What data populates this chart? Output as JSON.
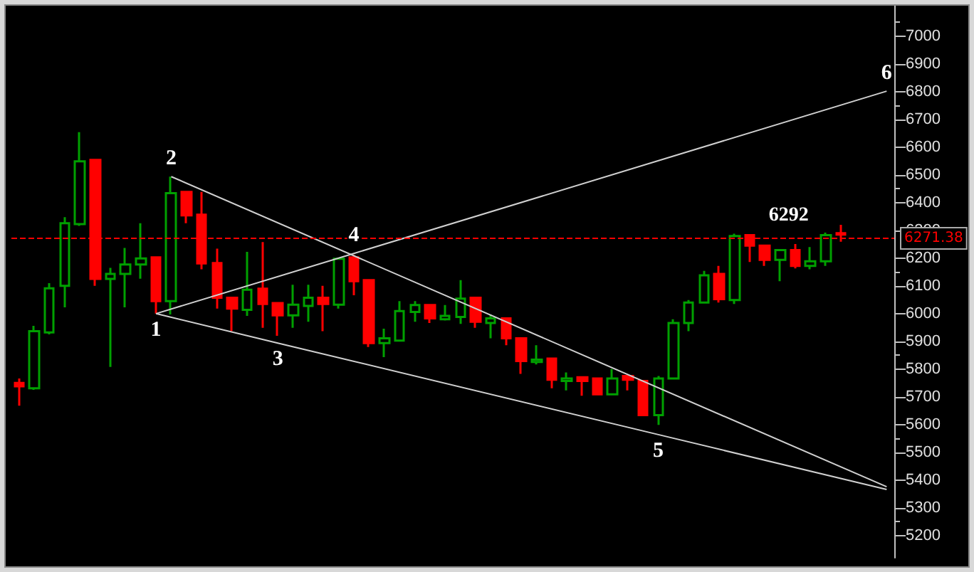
{
  "chart_data": {
    "type": "candlestick",
    "categories": [
      null,
      null,
      null,
      null,
      null,
      null,
      null,
      null,
      null,
      null,
      null,
      null,
      null,
      null,
      null,
      null,
      null,
      null,
      null,
      null,
      null,
      null,
      null,
      null,
      null,
      null,
      null,
      null,
      null,
      null,
      null,
      null,
      null,
      null,
      null,
      null,
      null,
      null,
      null,
      null,
      null,
      null,
      null,
      null,
      null,
      null,
      null,
      null,
      null,
      null,
      null,
      null,
      null,
      null,
      null,
      null,
      null,
      null
    ],
    "series": [
      {
        "colors": [
          "#ff0000",
          "#00a000",
          "#00a000",
          "#00a000",
          "#00a000",
          "#ff0000",
          "#00a000",
          "#00a000",
          "#00a000",
          "#ff0000",
          "#00a000",
          "#ff0000",
          "#ff0000",
          "#ff0000",
          "#ff0000",
          "#00a000",
          "#ff0000",
          "#ff0000",
          "#00a000",
          "#00a000",
          "#ff0000",
          "#00a000",
          "#ff0000",
          "#ff0000",
          "#00a000",
          "#00a000",
          "#00a000",
          "#ff0000",
          "#00a000",
          "#00a000",
          "#ff0000",
          "#00a000",
          "#ff0000",
          "#ff0000",
          "#00a000",
          "#ff0000",
          "#00a000",
          "#ff0000",
          "#ff0000",
          "#00a000",
          "#ff0000",
          "#ff0000",
          "#00a000",
          "#00a000",
          "#00a000",
          "#00a000",
          "#ff0000",
          "#00a000",
          "#ff0000",
          "#ff0000",
          "#00a000",
          "#ff0000",
          "#00a000",
          "#00a000",
          "#ff0000",
          null,
          null,
          null
        ],
        "ohlc": [
          [
            5750,
            5766,
            5668,
            5738
          ],
          [
            5731,
            5956,
            5725,
            5937
          ],
          [
            5932,
            6110,
            5925,
            6091
          ],
          [
            6100,
            6348,
            6023,
            6326
          ],
          [
            6323,
            6654,
            6316,
            6549
          ],
          [
            6554,
            6554,
            6100,
            6125
          ],
          [
            6125,
            6165,
            5808,
            6143
          ],
          [
            6143,
            6237,
            6023,
            6177
          ],
          [
            6177,
            6326,
            6126,
            6199
          ],
          [
            6203,
            6203,
            6000,
            6045
          ],
          [
            6045,
            6494,
            5997,
            6434
          ],
          [
            6439,
            6439,
            6326,
            6354
          ],
          [
            6357,
            6439,
            6160,
            6181
          ],
          [
            6182,
            6234,
            6018,
            6057
          ],
          [
            6057,
            6057,
            5937,
            6018
          ],
          [
            6014,
            6223,
            5992,
            6086
          ],
          [
            6090,
            6258,
            5949,
            6035
          ],
          [
            6038,
            6038,
            5920,
            5994
          ],
          [
            5994,
            6104,
            5949,
            6032
          ],
          [
            6028,
            6104,
            5971,
            6057
          ],
          [
            6057,
            6100,
            5937,
            6035
          ],
          [
            6032,
            6198,
            6018,
            6198
          ],
          [
            6203,
            6212,
            6066,
            6117
          ],
          [
            6121,
            6121,
            5880,
            5894
          ],
          [
            5894,
            5946,
            5843,
            5911
          ],
          [
            5903,
            6045,
            5903,
            6009
          ],
          [
            6006,
            6045,
            5971,
            6031
          ],
          [
            6031,
            6031,
            5966,
            5983
          ],
          [
            5980,
            6031,
            5975,
            5992
          ],
          [
            5988,
            6121,
            5963,
            6054
          ],
          [
            6057,
            6057,
            5949,
            5971
          ],
          [
            5966,
            5997,
            5911,
            5983
          ],
          [
            5983,
            5983,
            5886,
            5911
          ],
          [
            5911,
            5911,
            5783,
            5829
          ],
          [
            5826,
            5886,
            5817,
            5834
          ],
          [
            5838,
            5838,
            5731,
            5762
          ],
          [
            5757,
            5788,
            5723,
            5766
          ],
          [
            5771,
            5771,
            5704,
            5757
          ],
          [
            5766,
            5766,
            5709,
            5709
          ],
          [
            5709,
            5800,
            5709,
            5766
          ],
          [
            5775,
            5775,
            5723,
            5762
          ],
          [
            5757,
            5757,
            5634,
            5634
          ],
          [
            5634,
            5775,
            5599,
            5766
          ],
          [
            5766,
            5980,
            5766,
            5966
          ],
          [
            5966,
            6049,
            5937,
            6040
          ],
          [
            6040,
            6154,
            6040,
            6138
          ],
          [
            6143,
            6172,
            6040,
            6052
          ],
          [
            6049,
            6288,
            6035,
            6280
          ],
          [
            6283,
            6283,
            6186,
            6245
          ],
          [
            6245,
            6245,
            6172,
            6194
          ],
          [
            6194,
            6229,
            6117,
            6229
          ],
          [
            6229,
            6251,
            6163,
            6172
          ],
          [
            6172,
            6240,
            6160,
            6189
          ],
          [
            6189,
            6292,
            6172,
            6283
          ],
          [
            6290,
            6320,
            6259,
            6285
          ],
          null,
          null,
          null
        ]
      },
      {
        "type": "line",
        "color": "#d0d0d0",
        "values": [
          null,
          null,
          null,
          null,
          null,
          null,
          null,
          null,
          null,
          6000,
          null,
          null,
          null,
          null,
          null,
          null,
          null,
          null,
          null,
          null,
          null,
          null,
          6217,
          null,
          null,
          null,
          null,
          null,
          null,
          null,
          null,
          null,
          null,
          null,
          null,
          null,
          null,
          null,
          null,
          null,
          null,
          null,
          null,
          null,
          null,
          null,
          null,
          null,
          null,
          null,
          null,
          null,
          null,
          null,
          null,
          null,
          null,
          6802
        ]
      },
      {
        "type": "line",
        "color": "#d0d0d0",
        "values": [
          null,
          null,
          null,
          null,
          null,
          null,
          null,
          null,
          null,
          null,
          6494,
          null,
          null,
          null,
          null,
          null,
          null,
          null,
          null,
          null,
          null,
          null,
          null,
          null,
          null,
          null,
          null,
          null,
          null,
          null,
          null,
          null,
          null,
          null,
          null,
          null,
          null,
          null,
          null,
          null,
          null,
          null,
          null,
          null,
          null,
          null,
          null,
          null,
          null,
          null,
          null,
          null,
          null,
          null,
          null,
          null,
          null,
          5376
        ]
      },
      {
        "type": "line",
        "color": "#d0d0d0",
        "values": [
          null,
          null,
          null,
          null,
          null,
          null,
          null,
          null,
          null,
          6000,
          null,
          null,
          null,
          null,
          null,
          null,
          null,
          5894,
          null,
          null,
          null,
          null,
          null,
          null,
          null,
          null,
          null,
          null,
          null,
          null,
          null,
          null,
          null,
          null,
          null,
          null,
          null,
          null,
          null,
          null,
          null,
          null,
          5564,
          null,
          null,
          null,
          null,
          null,
          null,
          null,
          null,
          null,
          null,
          null,
          null,
          null,
          null,
          5366
        ]
      }
    ],
    "ylim": [
      5120,
      7110
    ],
    "yticks": [
      5200,
      5300,
      5400,
      5500,
      5600,
      5700,
      5800,
      5900,
      6000,
      6100,
      6200,
      6300,
      6400,
      6500,
      6600,
      6700,
      6800,
      6900,
      7000
    ],
    "ref_lines": [
      {
        "axis": "y",
        "value": 6271.38,
        "label": "6271.38",
        "color": "#ff0000",
        "line_style": "dashed"
      }
    ],
    "annotations": [
      {
        "text": "1",
        "y": 6000
      },
      {
        "text": "2",
        "y": 6494
      },
      {
        "text": "3",
        "y": 5894
      },
      {
        "text": "4",
        "y": 6217
      },
      {
        "text": "5",
        "y": 5564
      },
      {
        "text": "6",
        "y": 6802
      },
      {
        "text": "6292",
        "y": 6292
      }
    ],
    "grid": false,
    "marker": "none",
    "tick_labels": "y"
  }
}
